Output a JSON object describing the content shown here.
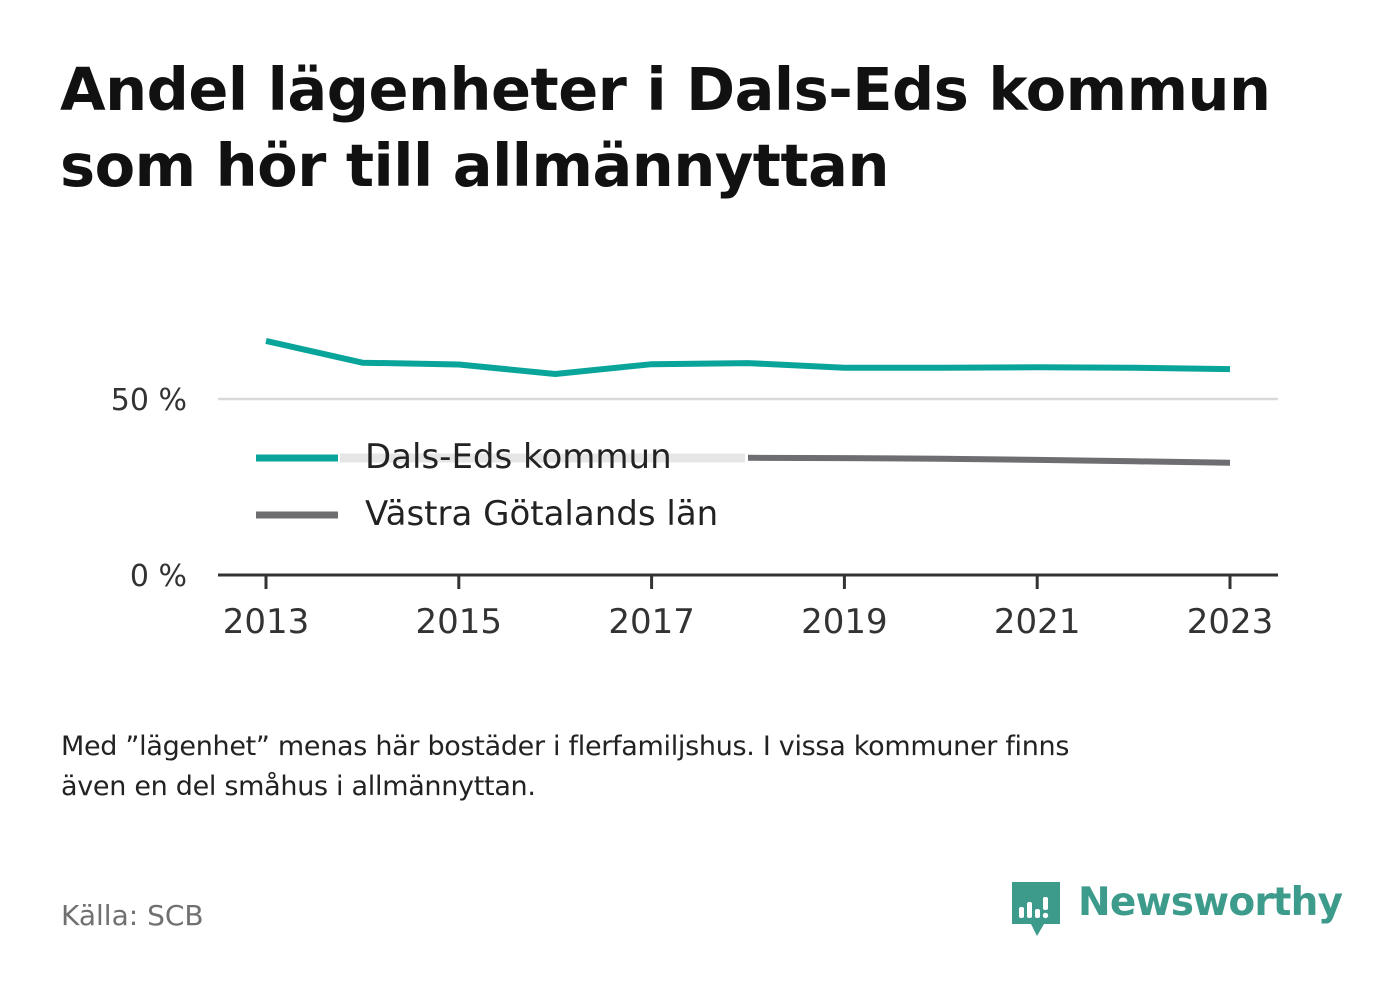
{
  "title_lines": [
    "Andel lägenheter i Dals-Eds kommun",
    "som hör till allmännyttan"
  ],
  "chart_data": {
    "type": "line",
    "x": [
      2013,
      2014,
      2015,
      2016,
      2017,
      2018,
      2019,
      2020,
      2021,
      2022,
      2023
    ],
    "x_ticks": [
      "2013",
      "2015",
      "2017",
      "2019",
      "2021",
      "2023"
    ],
    "y_ticks": [
      "0 %",
      "50 %"
    ],
    "y_tick_values": [
      0,
      50
    ],
    "ylim": [
      0,
      70
    ],
    "series": [
      {
        "name": "Dals-Eds kommun",
        "color": "#0aa59a",
        "values": [
          66.5,
          60.3,
          59.8,
          57.1,
          59.9,
          60.2,
          58.9,
          58.9,
          59.0,
          58.9,
          58.5
        ]
      },
      {
        "name": "Västra Götalands län",
        "color": "#6d6d72",
        "values": [
          null,
          null,
          null,
          null,
          null,
          33.3,
          33.2,
          33.0,
          32.7,
          32.3,
          31.9
        ]
      }
    ],
    "grid": true,
    "legend_position": "inside-left"
  },
  "note_lines": [
    "Med ”lägenhet” menas här bostäder i flerfamiljshus. I vissa kommuner finns",
    "även en del småhus i allmännyttan."
  ],
  "source": "Källa: SCB",
  "brand": {
    "name": "Newsworthy",
    "color": "#3d9b8c",
    "icon": "newsworthy-logo-icon"
  }
}
